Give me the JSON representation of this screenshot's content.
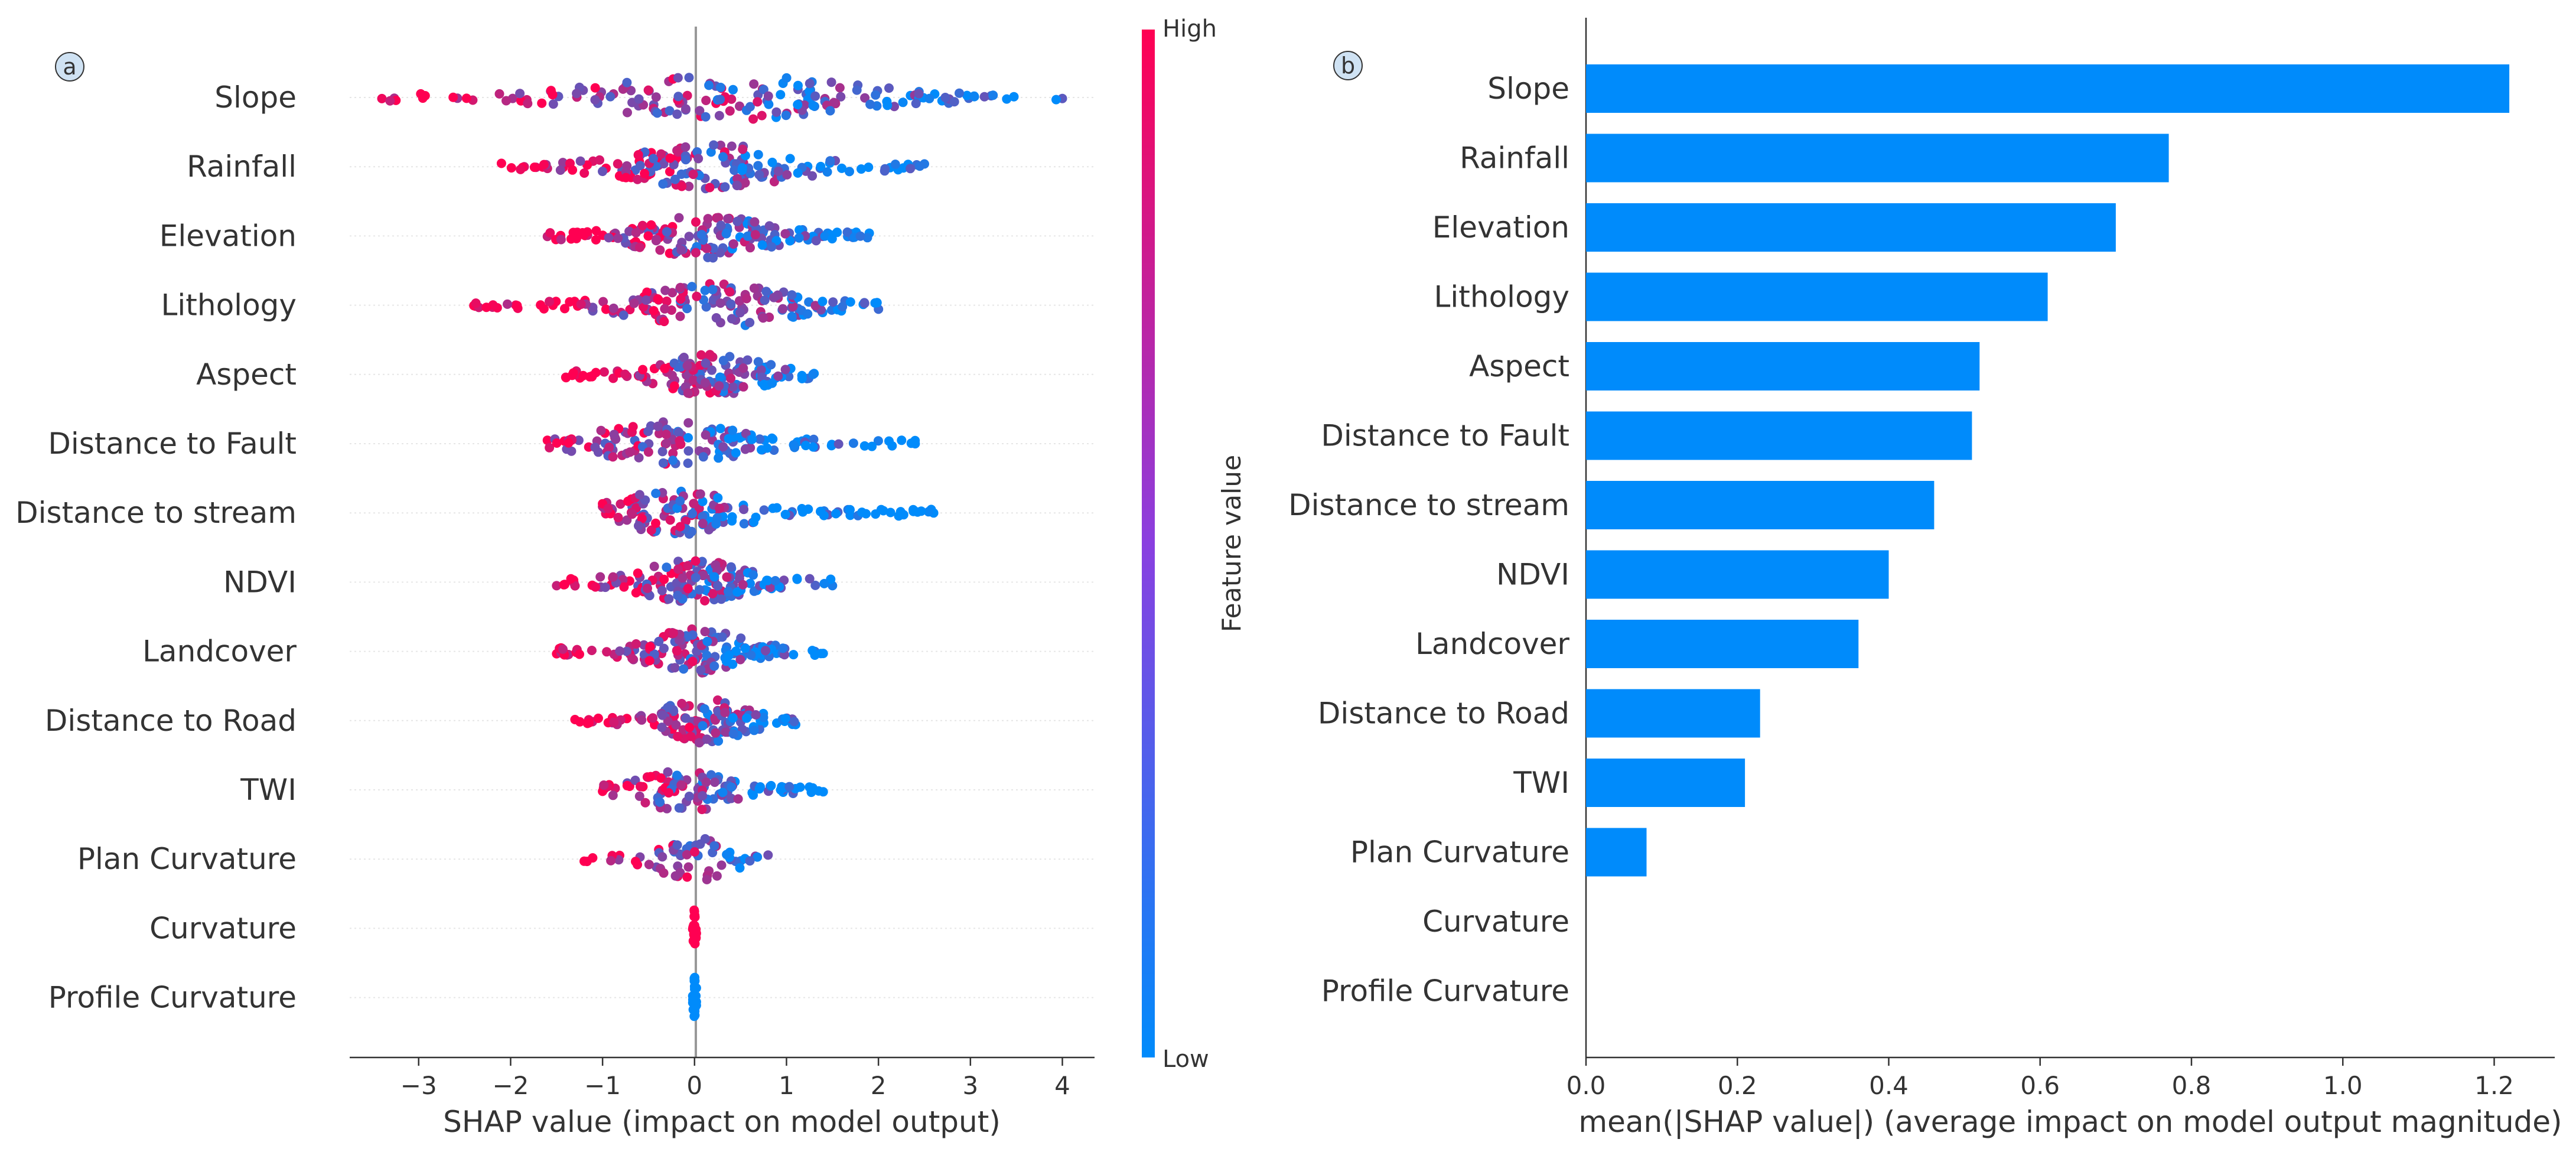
{
  "colors": {
    "low": "#008bfb",
    "high": "#ff0052",
    "bar": "#008bfb",
    "axis": "#333333",
    "zero_line": "#999999",
    "row_grid": "#e6e6e6"
  },
  "chart_data": [
    {
      "panel_label": "a",
      "type": "scatter",
      "subtype": "beeswarm",
      "title": "",
      "xlabel": "SHAP value (impact on model output)",
      "ylabel": "",
      "xlim": [
        -3.75,
        4.35
      ],
      "xticks": [
        -3,
        -2,
        -1,
        0,
        1,
        2,
        3,
        4
      ],
      "xtick_labels": [
        "−3",
        "−2",
        "−1",
        "0",
        "1",
        "2",
        "3",
        "4"
      ],
      "grid": false,
      "colorbar": {
        "label": "Feature value",
        "high_label": "High",
        "low_label": "Low"
      },
      "features": [
        {
          "name": "Slope",
          "min": -3.4,
          "max": 4.0,
          "center": 0.4,
          "n": 170
        },
        {
          "name": "Rainfall",
          "min": -2.1,
          "max": 2.5,
          "center": 0.2,
          "n": 170
        },
        {
          "name": "Elevation",
          "min": -1.6,
          "max": 1.9,
          "center": 0.1,
          "n": 170
        },
        {
          "name": "Lithology",
          "min": -2.4,
          "max": 2.0,
          "center": 0.2,
          "n": 160
        },
        {
          "name": "Aspect",
          "min": -1.4,
          "max": 1.3,
          "center": 0.2,
          "n": 140
        },
        {
          "name": "Distance to Fault",
          "min": -1.6,
          "max": 2.4,
          "center": -0.3,
          "n": 140
        },
        {
          "name": "Distance to stream",
          "min": -1.0,
          "max": 2.6,
          "center": -0.2,
          "n": 150
        },
        {
          "name": "NDVI",
          "min": -1.5,
          "max": 1.5,
          "center": 0.0,
          "n": 150
        },
        {
          "name": "Landcover",
          "min": -1.5,
          "max": 1.4,
          "center": 0.0,
          "n": 150
        },
        {
          "name": "Distance to Road",
          "min": -1.3,
          "max": 1.1,
          "center": 0.1,
          "n": 130
        },
        {
          "name": "TWI",
          "min": -1.0,
          "max": 1.4,
          "center": -0.1,
          "n": 110
        },
        {
          "name": "Plan Curvature",
          "min": -1.2,
          "max": 0.8,
          "center": 0.0,
          "n": 60
        },
        {
          "name": "Curvature",
          "min": -0.02,
          "max": 0.02,
          "center": 0.0,
          "n": 24
        },
        {
          "name": "Profile Curvature",
          "min": -0.02,
          "max": 0.02,
          "center": 0.0,
          "n": 24
        }
      ]
    },
    {
      "panel_label": "b",
      "type": "bar",
      "orientation": "horizontal",
      "title": "",
      "xlabel": "mean(|SHAP value|) (average impact on model output magnitude)",
      "ylabel": "",
      "xlim": [
        0,
        1.28
      ],
      "xticks": [
        0.0,
        0.2,
        0.4,
        0.6,
        0.8,
        1.0,
        1.2
      ],
      "xtick_labels": [
        "0.0",
        "0.2",
        "0.4",
        "0.6",
        "0.8",
        "1.0",
        "1.2"
      ],
      "grid": false,
      "categories": [
        "Slope",
        "Rainfall",
        "Elevation",
        "Lithology",
        "Aspect",
        "Distance to Fault",
        "Distance to stream",
        "NDVI",
        "Landcover",
        "Distance to Road",
        "TWI",
        "Plan Curvature",
        "Curvature",
        "Profile Curvature"
      ],
      "values": [
        1.22,
        0.77,
        0.7,
        0.61,
        0.52,
        0.51,
        0.46,
        0.4,
        0.36,
        0.23,
        0.21,
        0.08,
        0.0,
        0.0
      ]
    }
  ]
}
